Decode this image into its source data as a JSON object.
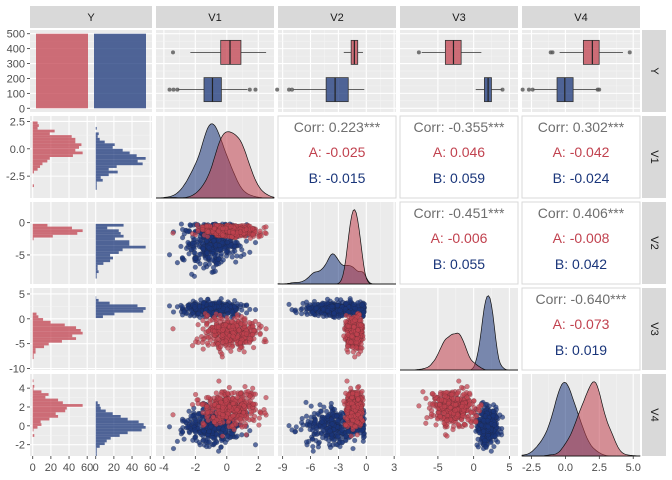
{
  "chart_data": {
    "type": "scatterplot-matrix",
    "variables": [
      "Y",
      "V1",
      "V2",
      "V3",
      "V4"
    ],
    "groups": [
      {
        "name": "A",
        "color": "#C1424F"
      },
      {
        "name": "B",
        "color": "#19357A"
      }
    ],
    "x_ticks": {
      "Y": [
        "0",
        "20",
        "40",
        "60",
        "0",
        "20",
        "40",
        "60"
      ],
      "V1": [
        "-4",
        "-2",
        "0",
        "2"
      ],
      "V2": [
        "-9",
        "-6",
        "-3",
        "0",
        "3"
      ],
      "V3": [
        "-5",
        "0",
        "5"
      ],
      "V4": [
        "-2.5",
        "0.0",
        "2.5",
        "5.0"
      ]
    },
    "y_ticks": {
      "Y": [
        "500",
        "400",
        "300",
        "200",
        "100",
        "0"
      ],
      "V1": [
        "2.5",
        "0.0",
        "-2.5"
      ],
      "V2": [
        "0",
        "-5"
      ],
      "V3": [
        "5",
        "0",
        "-5",
        "-10"
      ],
      "V4": [
        "4",
        "2",
        "0",
        "-2"
      ]
    },
    "ranges": {
      "Y_count": [
        -25,
        525
      ],
      "hist_count": [
        -3,
        62
      ],
      "V1": [
        -4.5,
        3.0
      ],
      "V2": [
        -9.5,
        3.2
      ],
      "V3": [
        -10.3,
        6.2
      ],
      "V4": [
        -3.2,
        5.5
      ]
    },
    "counts": {
      "A": 500,
      "B": 500
    },
    "group_stats": {
      "A": {
        "V1": [
          0.2,
          0.9
        ],
        "V2": [
          -1.0,
          0.8
        ],
        "V3": [
          -3.0,
          1.6
        ],
        "V4": [
          1.9,
          0.95
        ]
      },
      "B": {
        "V1": [
          -1.0,
          0.9
        ],
        "V2": [
          -3.2,
          1.7
        ],
        "V3": [
          2.0,
          0.7
        ],
        "V4": [
          0.0,
          0.95
        ]
      }
    },
    "correlations": [
      {
        "row": "V1",
        "col": "V2",
        "overall": "Corr: 0.223***",
        "A": "A: -0.025",
        "B": "B: -0.015"
      },
      {
        "row": "V1",
        "col": "V3",
        "overall": "Corr: -0.355***",
        "A": "A: 0.046",
        "B": "B: 0.059"
      },
      {
        "row": "V1",
        "col": "V4",
        "overall": "Corr: 0.302***",
        "A": "A: -0.042",
        "B": "B: -0.024"
      },
      {
        "row": "V2",
        "col": "V3",
        "overall": "Corr: -0.451***",
        "A": "A: -0.006",
        "B": "B: 0.055"
      },
      {
        "row": "V2",
        "col": "V4",
        "overall": "Corr: 0.406***",
        "A": "A: -0.008",
        "B": "B: 0.042"
      },
      {
        "row": "V3",
        "col": "V4",
        "overall": "Corr: -0.640***",
        "A": "A: -0.073",
        "B": "B: 0.019"
      }
    ],
    "grid": true,
    "legend": "none"
  }
}
